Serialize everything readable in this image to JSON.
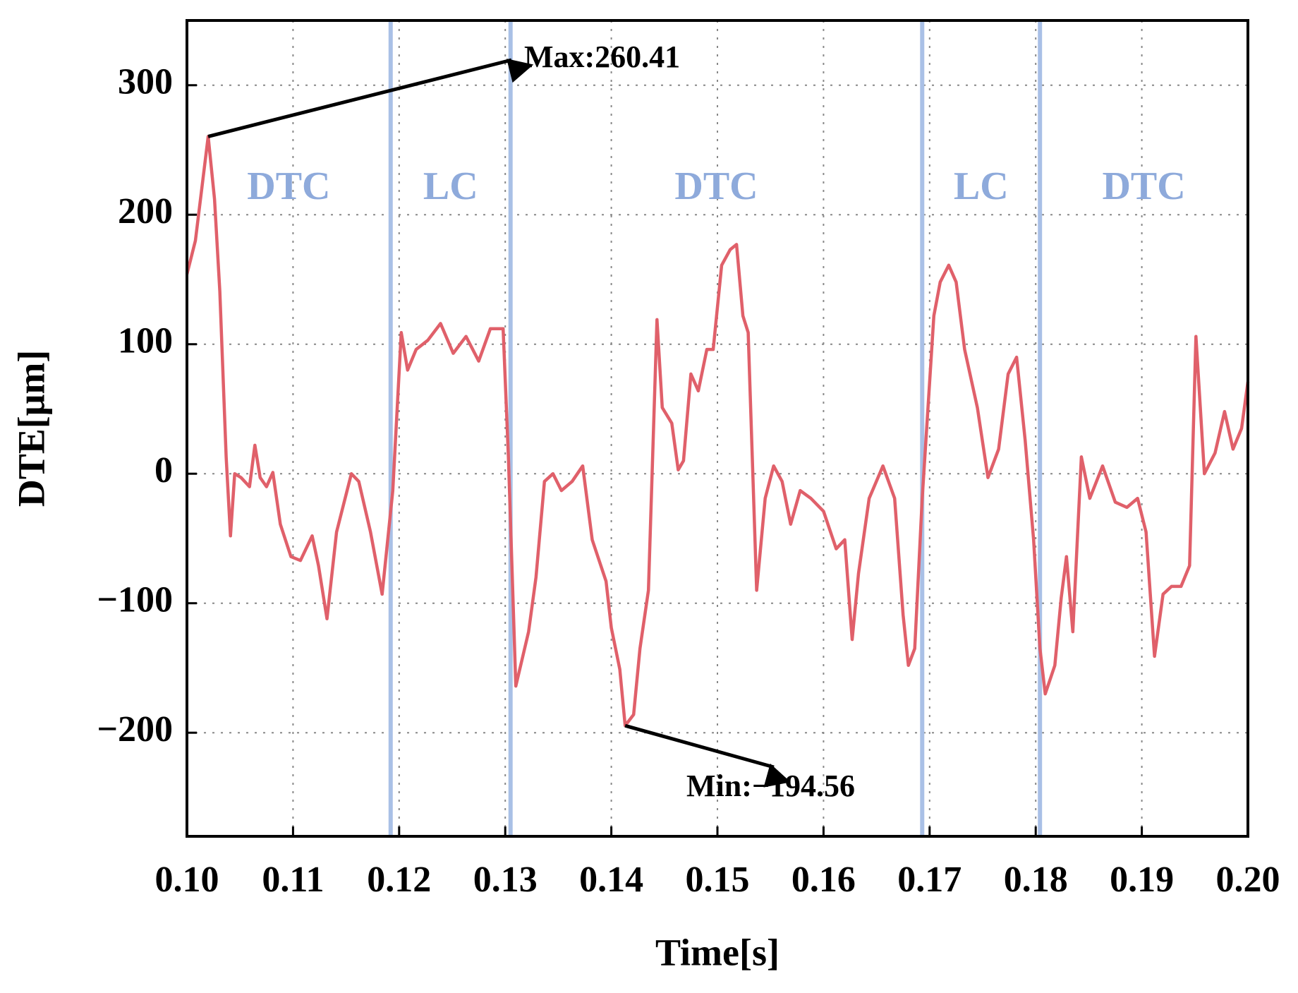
{
  "chart_data": {
    "type": "line",
    "x_label": "Time[s]",
    "y_label": "DTE[μm]",
    "xlim": [
      0.1,
      0.2
    ],
    "ylim": [
      -280,
      350
    ],
    "xticks": [
      {
        "value": 0.1,
        "label": "0.10"
      },
      0.11,
      0.12,
      0.13,
      0.14,
      0.15,
      0.16,
      0.17,
      0.18,
      0.19,
      {
        "value": 0.2,
        "label": "0.20"
      }
    ],
    "yticks": [
      {
        "value": -200,
        "label": "−200"
      },
      {
        "value": -100,
        "label": "−100"
      },
      0,
      100,
      200,
      300
    ],
    "grid": true,
    "regions": [
      "DTC",
      "LC",
      "DTC",
      "LC",
      "DTC"
    ],
    "region_boundaries": [
      0.1192,
      0.1305,
      0.1693,
      0.1804
    ],
    "region_color": "#a9c0e6",
    "annotations": [
      {
        "text": "Max:260.41",
        "x": 0.102,
        "y": 260.41
      },
      {
        "text": "Min:−194.56",
        "x": 0.1413,
        "y": -194.56
      }
    ],
    "series": [
      {
        "name": "DTE",
        "color": "#e0606a",
        "x": [
          0.1,
          0.1008,
          0.102,
          0.1026,
          0.1031,
          0.1037,
          0.1041,
          0.1045,
          0.1051,
          0.1059,
          0.1064,
          0.1069,
          0.1075,
          0.1081,
          0.1088,
          0.1098,
          0.1107,
          0.1118,
          0.1124,
          0.1132,
          0.1141,
          0.1155,
          0.1162,
          0.1173,
          0.1184,
          0.1194,
          0.1202,
          0.1208,
          0.1216,
          0.1227,
          0.1239,
          0.1251,
          0.1263,
          0.1275,
          0.1286,
          0.1298,
          0.1303,
          0.131,
          0.1322,
          0.1329,
          0.1337,
          0.1345,
          0.1353,
          0.1363,
          0.1373,
          0.1382,
          0.1395,
          0.14,
          0.1408,
          0.1413,
          0.1421,
          0.1427,
          0.1435,
          0.1443,
          0.1448,
          0.1457,
          0.1463,
          0.1468,
          0.1475,
          0.1482,
          0.149,
          0.1496,
          0.1504,
          0.1512,
          0.1518,
          0.1524,
          0.1529,
          0.1537,
          0.1545,
          0.1553,
          0.1561,
          0.1569,
          0.1578,
          0.1588,
          0.16,
          0.1612,
          0.162,
          0.1627,
          0.1633,
          0.1643,
          0.1656,
          0.1667,
          0.1675,
          0.168,
          0.1686,
          0.1693,
          0.1704,
          0.171,
          0.1718,
          0.1725,
          0.1733,
          0.1745,
          0.1755,
          0.1765,
          0.1774,
          0.1782,
          0.179,
          0.1798,
          0.1804,
          0.1809,
          0.1818,
          0.1824,
          0.1829,
          0.1835,
          0.1843,
          0.1851,
          0.1863,
          0.1875,
          0.1886,
          0.1896,
          0.1904,
          0.1912,
          0.192,
          0.1928,
          0.1937,
          0.1945,
          0.1951,
          0.1959,
          0.1969,
          0.1978,
          0.1986,
          0.1994,
          0.2
        ],
        "values": [
          154,
          180,
          260.41,
          212,
          141,
          13,
          -48,
          0,
          -3,
          -10,
          22,
          -3,
          -10,
          1,
          -39,
          -64,
          -67,
          -48,
          -71,
          -112,
          -45,
          0,
          -6,
          -45,
          -93,
          -13,
          109,
          80,
          96,
          103,
          116,
          93,
          106,
          87,
          112,
          112,
          13,
          -164,
          -122,
          -80,
          -6,
          0,
          -13,
          -6,
          6,
          -51,
          -83,
          -119,
          -151,
          -194.56,
          -186,
          -135,
          -90,
          119,
          51,
          39,
          3,
          10,
          77,
          64,
          96,
          96,
          161,
          173,
          177,
          122,
          109,
          -90,
          -19,
          6,
          -6,
          -39,
          -13,
          -19,
          -29,
          -58,
          -51,
          -128,
          -77,
          -19,
          6,
          -19,
          -109,
          -148,
          -135,
          -19,
          122,
          148,
          161,
          148,
          96,
          51,
          -3,
          19,
          77,
          90,
          26,
          -51,
          -135,
          -170,
          -148,
          -96,
          -64,
          -122,
          13,
          -19,
          6,
          -22,
          -26,
          -19,
          -45,
          -141,
          -93,
          -87,
          -87,
          -71,
          106,
          0,
          16,
          48,
          19,
          35,
          71
        ]
      }
    ]
  }
}
